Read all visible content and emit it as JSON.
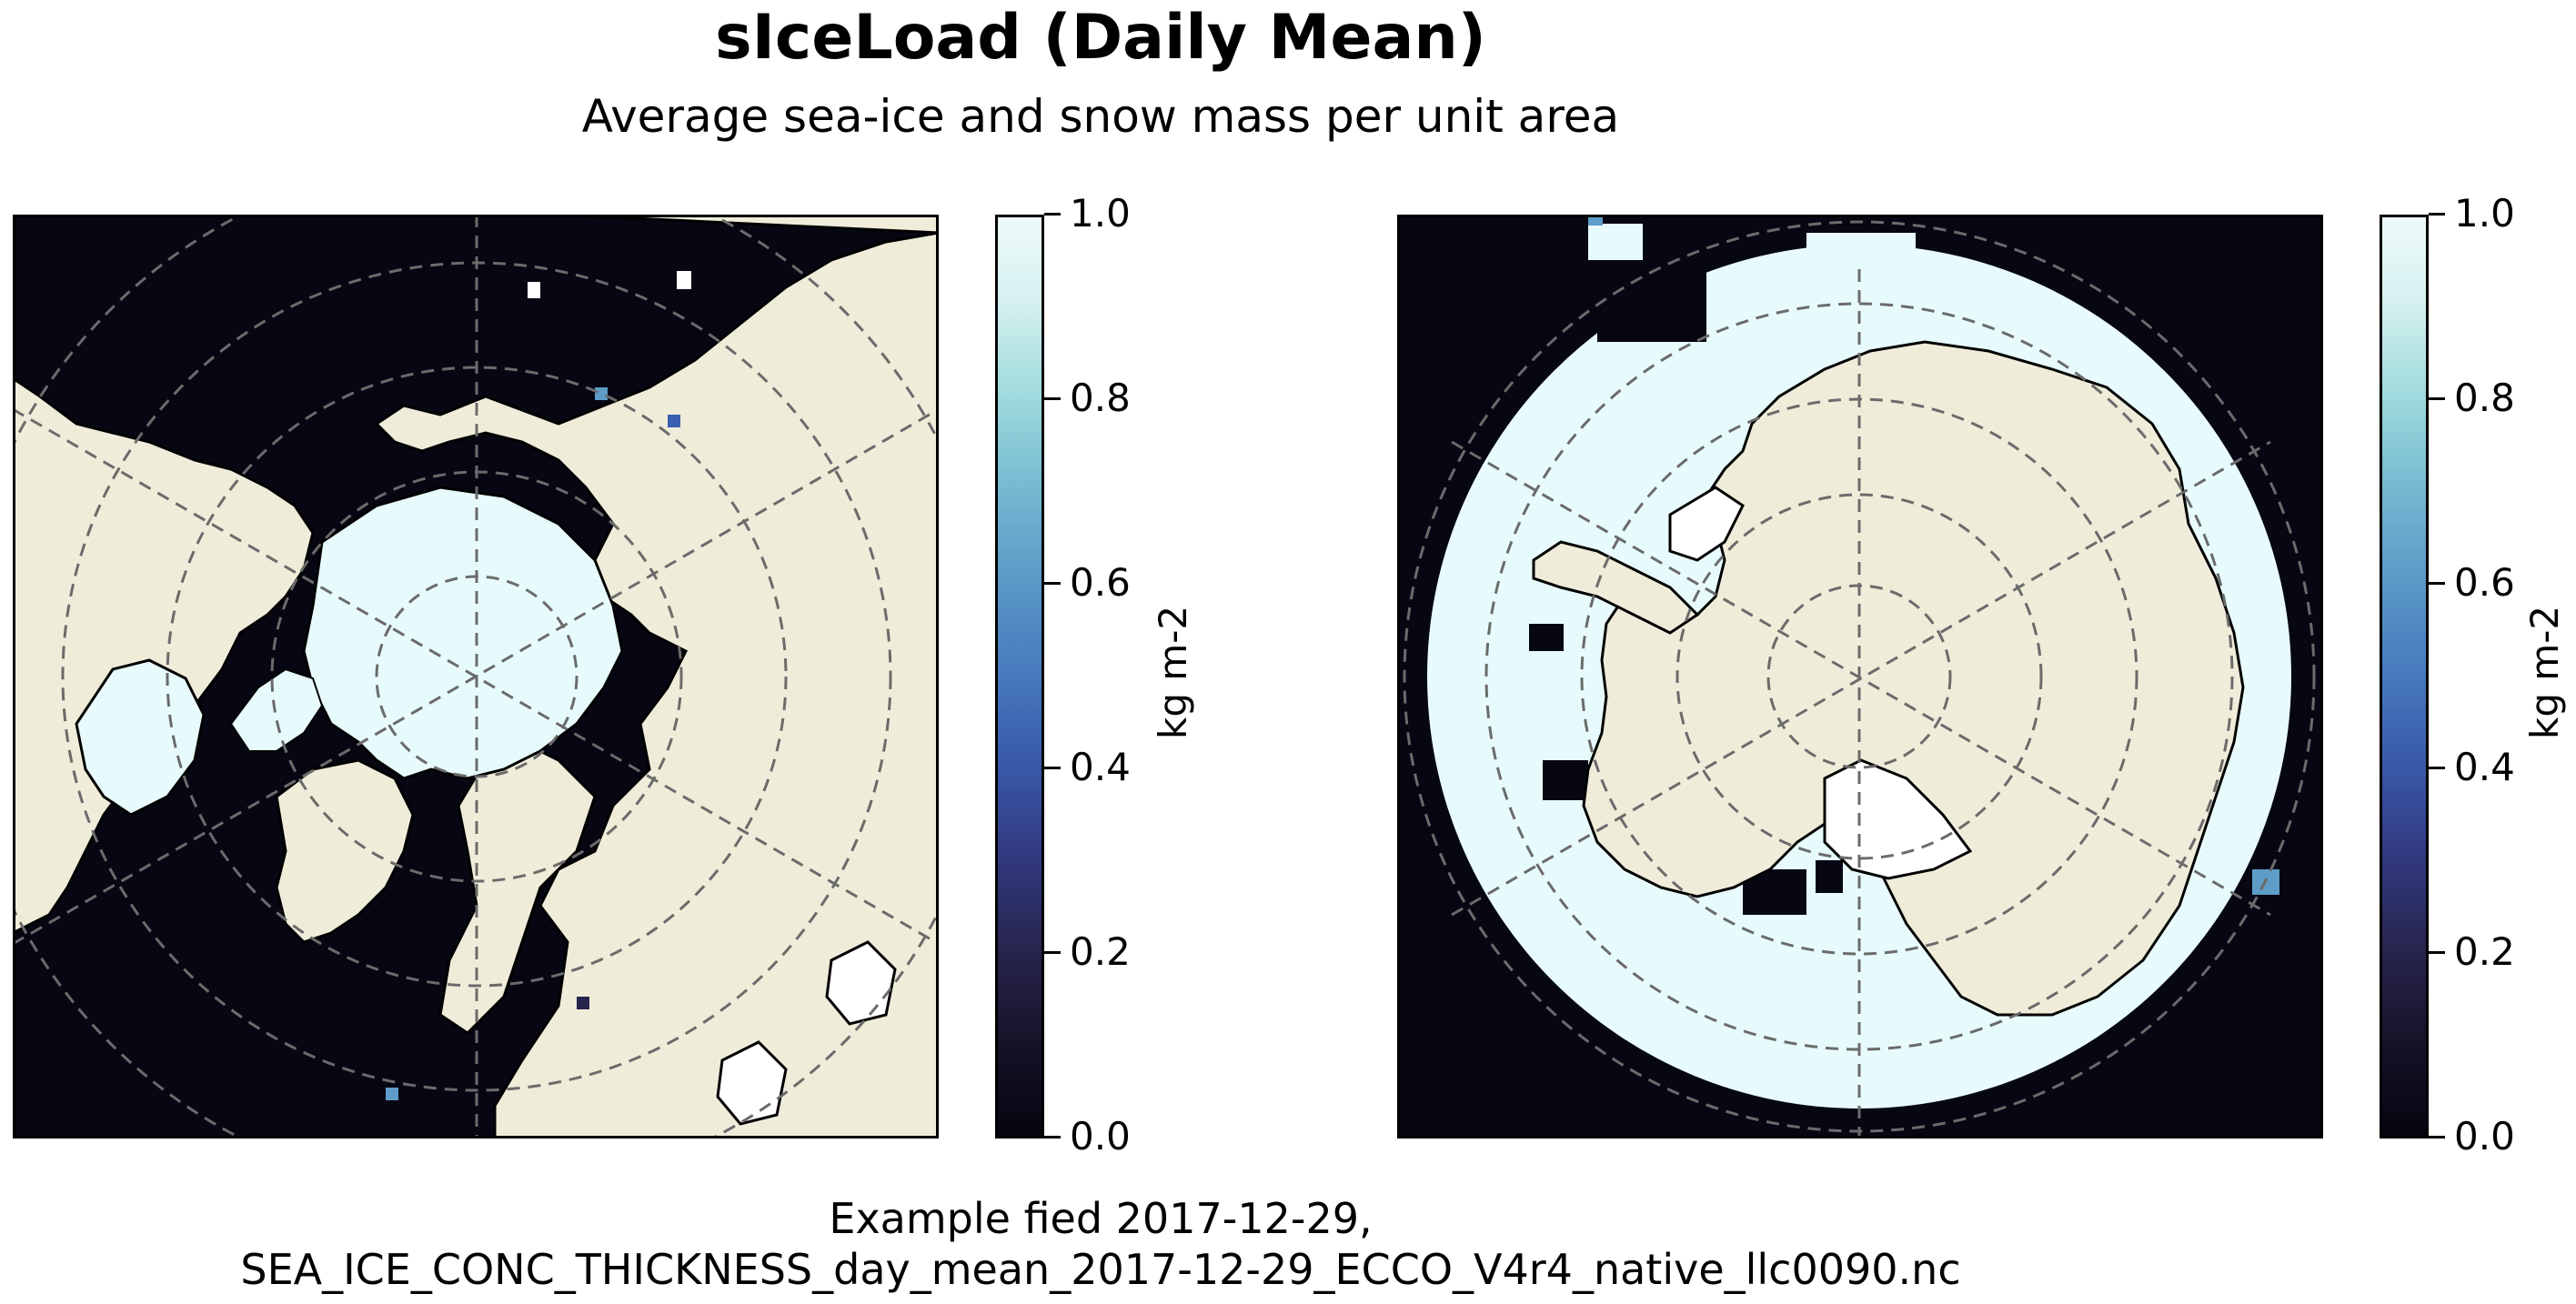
{
  "title": "sIceLoad (Daily Mean)",
  "subtitle": "Average sea-ice and snow mass per unit area",
  "footer": {
    "line1": "Example fied 2017-12-29,",
    "line2": "SEA_ICE_CONC_THICKNESS_day_mean_2017-12-29_ECCO_V4r4_native_llc0090.nc"
  },
  "colors": {
    "ocean": "#070714",
    "land": "#efedda",
    "ice": "#e8fbfc",
    "coast": "#000000",
    "grid": "#6b6b6b"
  },
  "panels": [
    {
      "name": "north-polar-map",
      "projection": "north-polar-stereographic",
      "colorbar": {
        "label": "kg m-2",
        "min": 0.0,
        "max": 1.0,
        "ticks": [
          "0.0",
          "0.2",
          "0.4",
          "0.6",
          "0.8",
          "1.0"
        ]
      }
    },
    {
      "name": "south-polar-map",
      "projection": "south-polar-stereographic",
      "colorbar": {
        "label": "kg m-2",
        "min": 0.0,
        "max": 1.0,
        "ticks": [
          "0.0",
          "0.2",
          "0.4",
          "0.6",
          "0.8",
          "1.0"
        ]
      }
    }
  ]
}
